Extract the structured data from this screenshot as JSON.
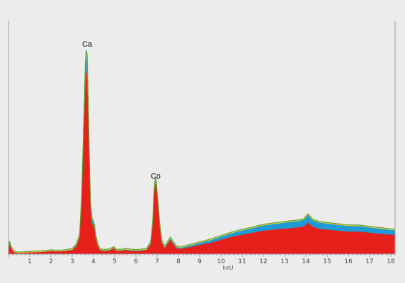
{
  "chart_data": {
    "type": "area",
    "title": "",
    "xlabel": "keU",
    "ylabel": "",
    "xlim": [
      0,
      18.2
    ],
    "ylim": [
      0,
      100
    ],
    "grid": false,
    "legend": "none",
    "x_ticks": [
      1,
      2,
      3,
      4,
      5,
      6,
      7,
      8,
      9,
      10,
      11,
      12,
      13,
      14,
      15,
      16,
      17,
      18
    ],
    "annotations": [
      {
        "text": "Ca",
        "x": 3.7,
        "y": 100
      },
      {
        "text": "Co",
        "x": 6.93,
        "y": 35
      }
    ],
    "colors": {
      "red": "#e8201c",
      "blue": "#1e9ad6",
      "yellow": "#d8d238",
      "green": "#4f9a32",
      "axis": "#9a9aa6"
    },
    "series": [
      {
        "color": "red",
        "x": [
          0,
          0.05,
          0.12,
          0.25,
          0.4,
          0.6,
          1.0,
          1.5,
          1.8,
          2.0,
          2.2,
          2.5,
          2.7,
          3.0,
          3.2,
          3.35,
          3.45,
          3.55,
          3.62,
          3.66,
          3.7,
          3.74,
          3.78,
          3.82,
          3.86,
          3.92,
          4.0,
          4.05,
          4.1,
          4.2,
          4.3,
          4.45,
          4.6,
          4.8,
          4.95,
          5.1,
          5.3,
          5.5,
          5.8,
          6.2,
          6.5,
          6.7,
          6.8,
          6.85,
          6.9,
          6.93,
          6.96,
          7.0,
          7.1,
          7.2,
          7.35,
          7.5,
          7.62,
          7.75,
          7.9,
          8.1,
          8.3,
          8.6,
          9.0,
          9.5,
          10.0,
          10.5,
          11.0,
          11.5,
          12.0,
          12.5,
          13.0,
          13.5,
          13.9,
          14.1,
          14.3,
          14.6,
          15.0,
          15.5,
          16.0,
          16.5,
          17.0,
          17.5,
          18.0,
          18.2
        ],
        "y": [
          1,
          5,
          3,
          1,
          0.5,
          0.5,
          0.8,
          1,
          1.2,
          1.5,
          1.3,
          1.3,
          1.5,
          2,
          4,
          8,
          25,
          60,
          84,
          90,
          88,
          72,
          52,
          35,
          22,
          15,
          14,
          12,
          8,
          4,
          2,
          1.5,
          1.5,
          2,
          2.8,
          1.5,
          1.5,
          2,
          1.5,
          1.5,
          2,
          5,
          15,
          28,
          34,
          35,
          33,
          28,
          15,
          6,
          3,
          5,
          7,
          5,
          3,
          2.5,
          3,
          3.5,
          4.5,
          5.5,
          7,
          8.5,
          9.5,
          10.5,
          11.5,
          12,
          12.5,
          13,
          13.5,
          15.5,
          13.5,
          12.5,
          12,
          11.5,
          11,
          11,
          10.5,
          10,
          9.5,
          9.5
        ]
      },
      {
        "color": "blue",
        "x": [
          0,
          0.05,
          0.12,
          0.25,
          0.4,
          0.6,
          1.0,
          1.5,
          1.8,
          2.0,
          2.2,
          2.5,
          2.7,
          3.0,
          3.2,
          3.35,
          3.45,
          3.55,
          3.62,
          3.66,
          3.7,
          3.74,
          3.78,
          3.82,
          3.86,
          3.92,
          4.0,
          4.05,
          4.1,
          4.2,
          4.3,
          4.45,
          4.6,
          4.8,
          4.95,
          5.1,
          5.3,
          5.5,
          5.8,
          6.2,
          6.5,
          6.7,
          6.8,
          6.85,
          6.9,
          6.93,
          6.96,
          7.0,
          7.1,
          7.2,
          7.35,
          7.5,
          7.62,
          7.75,
          7.9,
          8.1,
          8.3,
          8.6,
          9.0,
          9.5,
          10.0,
          10.5,
          11.0,
          11.5,
          12.0,
          12.5,
          13.0,
          13.5,
          13.9,
          14.1,
          14.3,
          14.6,
          15.0,
          15.5,
          16.0,
          16.5,
          17.0,
          17.5,
          18.0,
          18.2
        ],
        "y": [
          1.2,
          6,
          3.5,
          1.2,
          0.7,
          0.7,
          1,
          1.2,
          1.5,
          1.8,
          1.6,
          1.6,
          1.8,
          2.4,
          4.8,
          9.5,
          29,
          68,
          94,
          100,
          98,
          82,
          60,
          40,
          26,
          18,
          16,
          14,
          9.5,
          5,
          2.5,
          2,
          2,
          2.5,
          3.3,
          2,
          2,
          2.5,
          2,
          2,
          2.5,
          6,
          17,
          31,
          36,
          37,
          35,
          30,
          17,
          7,
          3.6,
          6,
          8,
          6,
          3.7,
          3.2,
          3.8,
          4.5,
          5.7,
          7,
          8.8,
          10.5,
          11.8,
          13,
          14.3,
          15,
          15.7,
          16.3,
          17,
          19.5,
          17,
          15.8,
          15.2,
          14.6,
          14,
          14,
          13.3,
          12.7,
          12,
          12
        ]
      }
    ]
  }
}
